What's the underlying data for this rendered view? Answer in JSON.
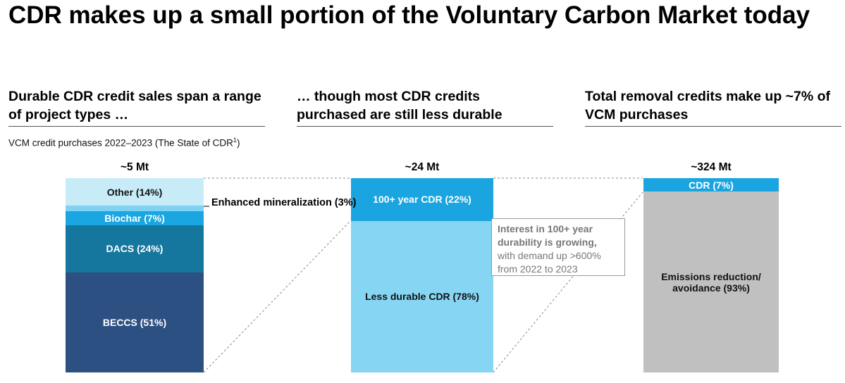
{
  "title": "CDR makes up a small portion of the Voluntary Carbon Market today",
  "subheads": {
    "left": "Durable CDR credit sales span a range of project types …",
    "middle": "… though most CDR credits purchased are still less durable",
    "right": "Total removal credits make up ~7% of VCM purchases"
  },
  "source": {
    "text": "VCM credit purchases 2022–2023 (The State of CDR",
    "sup": "1",
    "close": ")"
  },
  "chart_data": [
    {
      "type": "bar",
      "stacked": true,
      "total_label": "~5 Mt",
      "unit": "percent",
      "segments": [
        {
          "name": "BECCS",
          "value": 51,
          "label": "BECCS (51%)",
          "color": "#2d5083"
        },
        {
          "name": "DACS",
          "value": 24,
          "label": "DACS (24%)",
          "color": "#16779e"
        },
        {
          "name": "Biochar",
          "value": 7,
          "label": "Biochar (7%)",
          "color": "#1aa6e0"
        },
        {
          "name": "Enhanced mineralization",
          "value": 3,
          "label": "Enhanced mineralization (3%)",
          "color": "#7fd2f2"
        },
        {
          "name": "Other",
          "value": 14,
          "label": "Other (14%)",
          "color": "#c8ebf8"
        }
      ]
    },
    {
      "type": "bar",
      "stacked": true,
      "total_label": "~24 Mt",
      "unit": "percent",
      "segments": [
        {
          "name": "Less durable CDR",
          "value": 78,
          "label": "Less durable CDR (78%)",
          "color": "#86d6f3"
        },
        {
          "name": "100+ year CDR",
          "value": 22,
          "label": "100+ year CDR (22%)",
          "color": "#1ba5e0"
        }
      ]
    },
    {
      "type": "bar",
      "stacked": true,
      "total_label": "~324 Mt",
      "unit": "percent",
      "segments": [
        {
          "name": "Emissions reduction/ avoidance",
          "value": 93,
          "label": "Emissions reduction/ avoidance (93%)",
          "color": "#c0c0c0"
        },
        {
          "name": "CDR",
          "value": 7,
          "label": "CDR (7%)",
          "color": "#1ba5e0"
        }
      ]
    }
  ],
  "callout": {
    "enhanced_label": "Enhanced mineralization (3%)"
  },
  "note": {
    "bold": "Interest in 100+ year durability is growing,",
    "rest": "with demand up >600% from 2022 to 2023"
  }
}
